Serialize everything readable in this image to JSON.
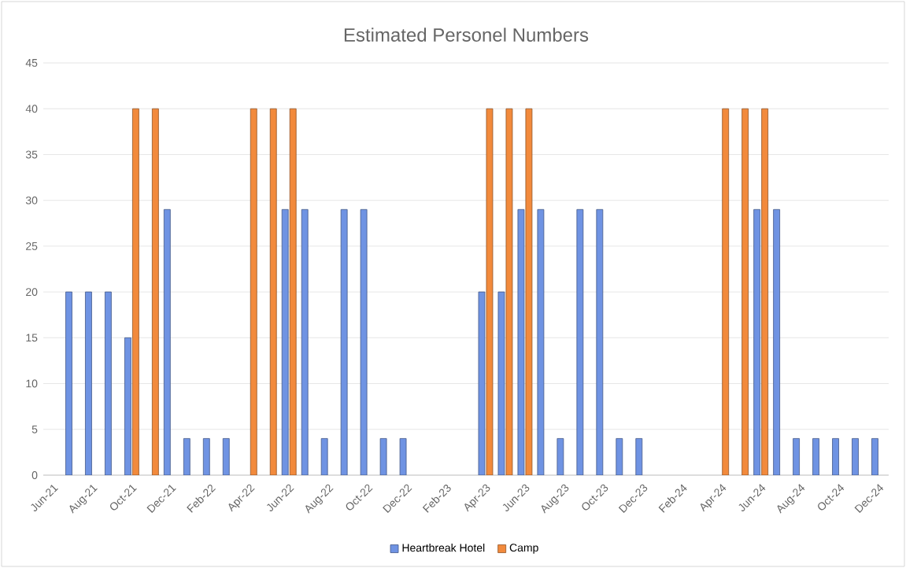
{
  "chart_data": {
    "type": "bar",
    "title": "Estimated Personel Numbers",
    "categories": [
      "Jun-21",
      null,
      "Aug-21",
      null,
      "Oct-21",
      null,
      "Dec-21",
      null,
      "Feb-22",
      null,
      "Apr-22",
      null,
      "Jun-22",
      null,
      "Aug-22",
      null,
      "Oct-22",
      null,
      "Dec-22",
      null,
      "Feb-23",
      null,
      "Apr-23",
      null,
      "Jun-23",
      null,
      "Aug-23",
      null,
      "Oct-23",
      null,
      "Dec-23",
      null,
      "Feb-24",
      null,
      "Apr-24",
      null,
      "Jun-24",
      null,
      "Aug-24",
      null,
      "Oct-24",
      null,
      "Dec-24"
    ],
    "series": [
      {
        "name": "Heartbreak Hotel",
        "color": "#6f93e3",
        "values": [
          null,
          20,
          20,
          20,
          15,
          null,
          29,
          4,
          4,
          4,
          null,
          null,
          29,
          29,
          4,
          29,
          29,
          4,
          4,
          null,
          null,
          null,
          20,
          20,
          29,
          29,
          4,
          29,
          29,
          4,
          4,
          null,
          null,
          null,
          null,
          null,
          29,
          29,
          4,
          4,
          4,
          4,
          4
        ]
      },
      {
        "name": "Camp",
        "color": "#f28a3c",
        "values": [
          null,
          null,
          null,
          null,
          40,
          40,
          null,
          null,
          null,
          null,
          40,
          40,
          40,
          null,
          null,
          null,
          null,
          null,
          null,
          null,
          null,
          null,
          40,
          40,
          40,
          null,
          null,
          null,
          null,
          null,
          null,
          null,
          null,
          null,
          40,
          40,
          40,
          null,
          null,
          null,
          null,
          null,
          null
        ]
      }
    ],
    "ylim": [
      0,
      45
    ],
    "yticks": [
      0,
      5,
      10,
      15,
      20,
      25,
      30,
      35,
      40,
      45
    ],
    "grid": "y",
    "legend": "bottom"
  }
}
